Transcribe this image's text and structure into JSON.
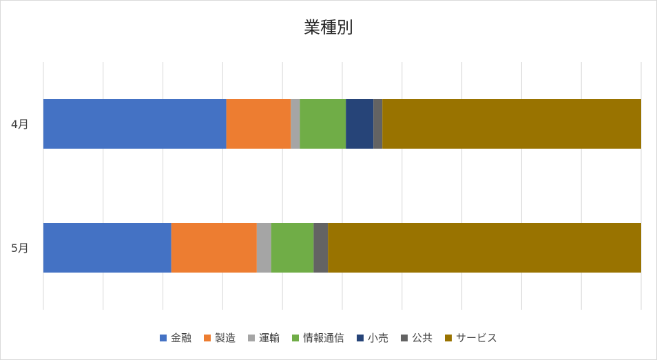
{
  "chart_data": {
    "type": "bar",
    "orientation": "horizontal",
    "stacked": "100%",
    "title": "業種別",
    "categories": [
      "4月",
      "5月"
    ],
    "series": [
      {
        "name": "金融",
        "color": "#4472C4",
        "values": [
          30.6,
          21.4
        ]
      },
      {
        "name": "製造",
        "color": "#ED7D31",
        "values": [
          10.8,
          14.3
        ]
      },
      {
        "name": "運輸",
        "color": "#A5A5A5",
        "values": [
          1.5,
          2.4
        ]
      },
      {
        "name": "情報通信",
        "color": "#70AD47",
        "values": [
          7.7,
          7.1
        ]
      },
      {
        "name": "小売",
        "color": "#264478",
        "values": [
          4.6,
          0
        ]
      },
      {
        "name": "公共",
        "color": "#636363",
        "values": [
          1.5,
          2.4
        ]
      },
      {
        "name": "サービス",
        "color": "#997300",
        "values": [
          43.3,
          52.4
        ]
      }
    ],
    "xlim": [
      0,
      100
    ],
    "gridlines": true,
    "legend_position": "bottom"
  }
}
